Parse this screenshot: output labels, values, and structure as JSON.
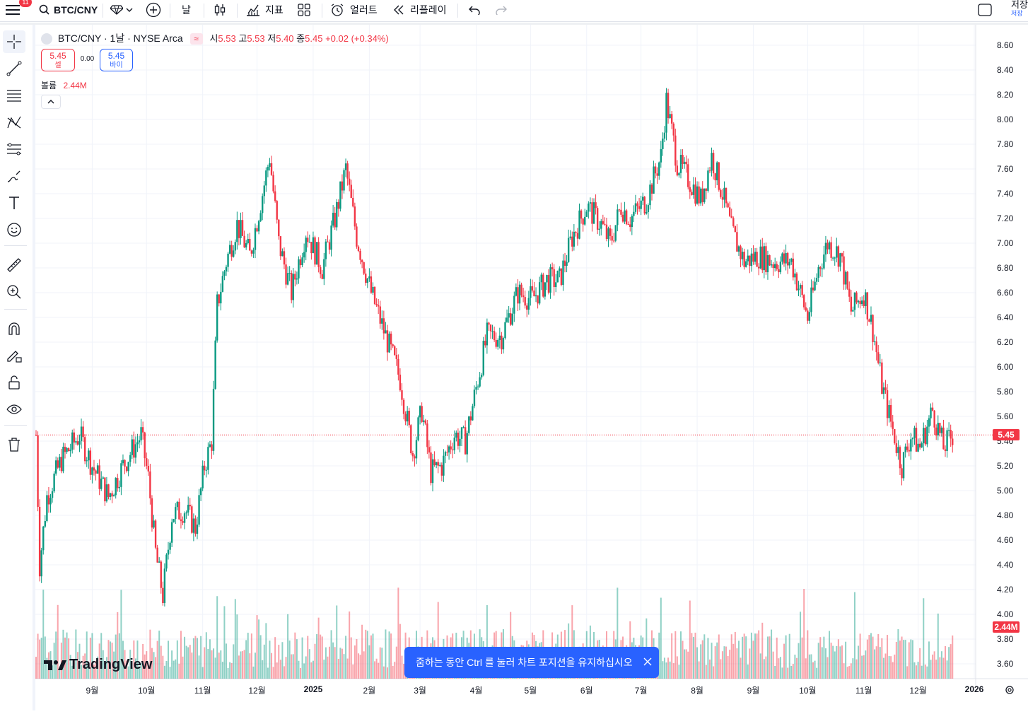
{
  "toolbar": {
    "notifications": "11",
    "symbol": "BTC/CNY",
    "interval": "날",
    "indicators": "지표",
    "alerts": "얼러트",
    "replay": "리플레이",
    "save": "저장",
    "save_sub": "저장"
  },
  "legend": {
    "title": "BTC/CNY · 1날 · NYSE Arca",
    "open_label": "시",
    "open": "5.53",
    "high_label": "고",
    "high": "5.53",
    "low_label": "저",
    "low": "5.40",
    "close_label": "종",
    "close": "5.45",
    "change": "+0.02 (+0.34%)",
    "sell_price": "5.45",
    "sell_label": "셀",
    "spread": "0.00",
    "buy_price": "5.45",
    "buy_label": "바이",
    "volume_label": "볼륨",
    "volume": "2.44M"
  },
  "price_tag": "5.45",
  "volume_tag": "2.44M",
  "toast": "줌하는 동안 Ctrl 를 눌러 차트 포지션을 유지하십시오",
  "logo": "TradingView",
  "colors": {
    "up": "#089981",
    "down": "#f23645",
    "accent": "#2962ff"
  },
  "chart_data": {
    "type": "candlestick",
    "symbol": "BTC/CNY",
    "interval": "1날",
    "x_ticks": [
      "9월",
      "10월",
      "11월",
      "12월",
      "2025",
      "2월",
      "3월",
      "4월",
      "5월",
      "6월",
      "7월",
      "8월",
      "9월",
      "10월",
      "11월",
      "12월",
      "2026"
    ],
    "y_ticks": [
      "3.60",
      "3.80",
      "4.00",
      "4.20",
      "4.40",
      "4.60",
      "4.80",
      "5.00",
      "5.20",
      "5.40",
      "5.60",
      "5.80",
      "6.00",
      "6.20",
      "6.40",
      "6.60",
      "6.80",
      "7.00",
      "7.20",
      "7.40",
      "7.60",
      "7.80",
      "8.00",
      "8.20",
      "8.40",
      "8.60"
    ],
    "ylim": [
      3.5,
      8.7
    ],
    "last_price": 5.45,
    "close_path": [
      {
        "date": "2024-08-01",
        "close": 5.45
      },
      {
        "date": "2024-08-03",
        "close": 4.4
      },
      {
        "date": "2024-08-07",
        "close": 4.95
      },
      {
        "date": "2024-08-15",
        "close": 5.25
      },
      {
        "date": "2024-08-25",
        "close": 5.45
      },
      {
        "date": "2024-09-01",
        "close": 5.2
      },
      {
        "date": "2024-09-10",
        "close": 4.95
      },
      {
        "date": "2024-09-18",
        "close": 5.2
      },
      {
        "date": "2024-09-28",
        "close": 5.45
      },
      {
        "date": "2024-10-02",
        "close": 5.1
      },
      {
        "date": "2024-10-06",
        "close": 4.5
      },
      {
        "date": "2024-10-10",
        "close": 4.15
      },
      {
        "date": "2024-10-15",
        "close": 4.8
      },
      {
        "date": "2024-10-22",
        "close": 4.85
      },
      {
        "date": "2024-10-28",
        "close": 4.7
      },
      {
        "date": "2024-11-02",
        "close": 5.2
      },
      {
        "date": "2024-11-06",
        "close": 5.4
      },
      {
        "date": "2024-11-09",
        "close": 6.5
      },
      {
        "date": "2024-11-14",
        "close": 6.85
      },
      {
        "date": "2024-11-20",
        "close": 7.15
      },
      {
        "date": "2024-11-27",
        "close": 6.9
      },
      {
        "date": "2024-12-04",
        "close": 7.4
      },
      {
        "date": "2024-12-08",
        "close": 7.7
      },
      {
        "date": "2024-12-13",
        "close": 7.0
      },
      {
        "date": "2024-12-20",
        "close": 6.6
      },
      {
        "date": "2024-12-28",
        "close": 7.1
      },
      {
        "date": "2025-01-06",
        "close": 6.8
      },
      {
        "date": "2025-01-13",
        "close": 7.2
      },
      {
        "date": "2025-01-19",
        "close": 7.6
      },
      {
        "date": "2025-01-25",
        "close": 7.05
      },
      {
        "date": "2025-02-02",
        "close": 6.6
      },
      {
        "date": "2025-02-10",
        "close": 6.25
      },
      {
        "date": "2025-02-18",
        "close": 5.9
      },
      {
        "date": "2025-02-25",
        "close": 5.3
      },
      {
        "date": "2025-03-02",
        "close": 5.65
      },
      {
        "date": "2025-03-07",
        "close": 5.15
      },
      {
        "date": "2025-03-13",
        "close": 5.2
      },
      {
        "date": "2025-03-20",
        "close": 5.45
      },
      {
        "date": "2025-03-26",
        "close": 5.4
      },
      {
        "date": "2025-04-02",
        "close": 5.9
      },
      {
        "date": "2025-04-07",
        "close": 6.25
      },
      {
        "date": "2025-04-15",
        "close": 6.25
      },
      {
        "date": "2025-04-24",
        "close": 6.6
      },
      {
        "date": "2025-05-02",
        "close": 6.55
      },
      {
        "date": "2025-05-10",
        "close": 6.7
      },
      {
        "date": "2025-05-17",
        "close": 6.7
      },
      {
        "date": "2025-05-24",
        "close": 7.05
      },
      {
        "date": "2025-06-01",
        "close": 7.3
      },
      {
        "date": "2025-06-09",
        "close": 7.15
      },
      {
        "date": "2025-06-14",
        "close": 7.0
      },
      {
        "date": "2025-06-20",
        "close": 7.3
      },
      {
        "date": "2025-06-25",
        "close": 7.2
      },
      {
        "date": "2025-07-04",
        "close": 7.35
      },
      {
        "date": "2025-07-12",
        "close": 7.7
      },
      {
        "date": "2025-07-15",
        "close": 8.15
      },
      {
        "date": "2025-07-21",
        "close": 7.65
      },
      {
        "date": "2025-07-28",
        "close": 7.5
      },
      {
        "date": "2025-08-03",
        "close": 7.35
      },
      {
        "date": "2025-08-09",
        "close": 7.7
      },
      {
        "date": "2025-08-15",
        "close": 7.4
      },
      {
        "date": "2025-08-20",
        "close": 7.1
      },
      {
        "date": "2025-08-27",
        "close": 6.85
      },
      {
        "date": "2025-09-04",
        "close": 6.9
      },
      {
        "date": "2025-09-12",
        "close": 6.85
      },
      {
        "date": "2025-09-22",
        "close": 6.85
      },
      {
        "date": "2025-10-01",
        "close": 6.4
      },
      {
        "date": "2025-10-07",
        "close": 6.8
      },
      {
        "date": "2025-10-12",
        "close": 7.0
      },
      {
        "date": "2025-10-19",
        "close": 6.9
      },
      {
        "date": "2025-10-25",
        "close": 6.45
      },
      {
        "date": "2025-11-01",
        "close": 6.6
      },
      {
        "date": "2025-11-06",
        "close": 6.3
      },
      {
        "date": "2025-11-11",
        "close": 5.85
      },
      {
        "date": "2025-11-16",
        "close": 5.55
      },
      {
        "date": "2025-11-22",
        "close": 5.2
      },
      {
        "date": "2025-11-27",
        "close": 5.45
      },
      {
        "date": "2025-12-02",
        "close": 5.35
      },
      {
        "date": "2025-12-09",
        "close": 5.65
      },
      {
        "date": "2025-12-15",
        "close": 5.35
      },
      {
        "date": "2025-12-20",
        "close": 5.45
      }
    ]
  }
}
